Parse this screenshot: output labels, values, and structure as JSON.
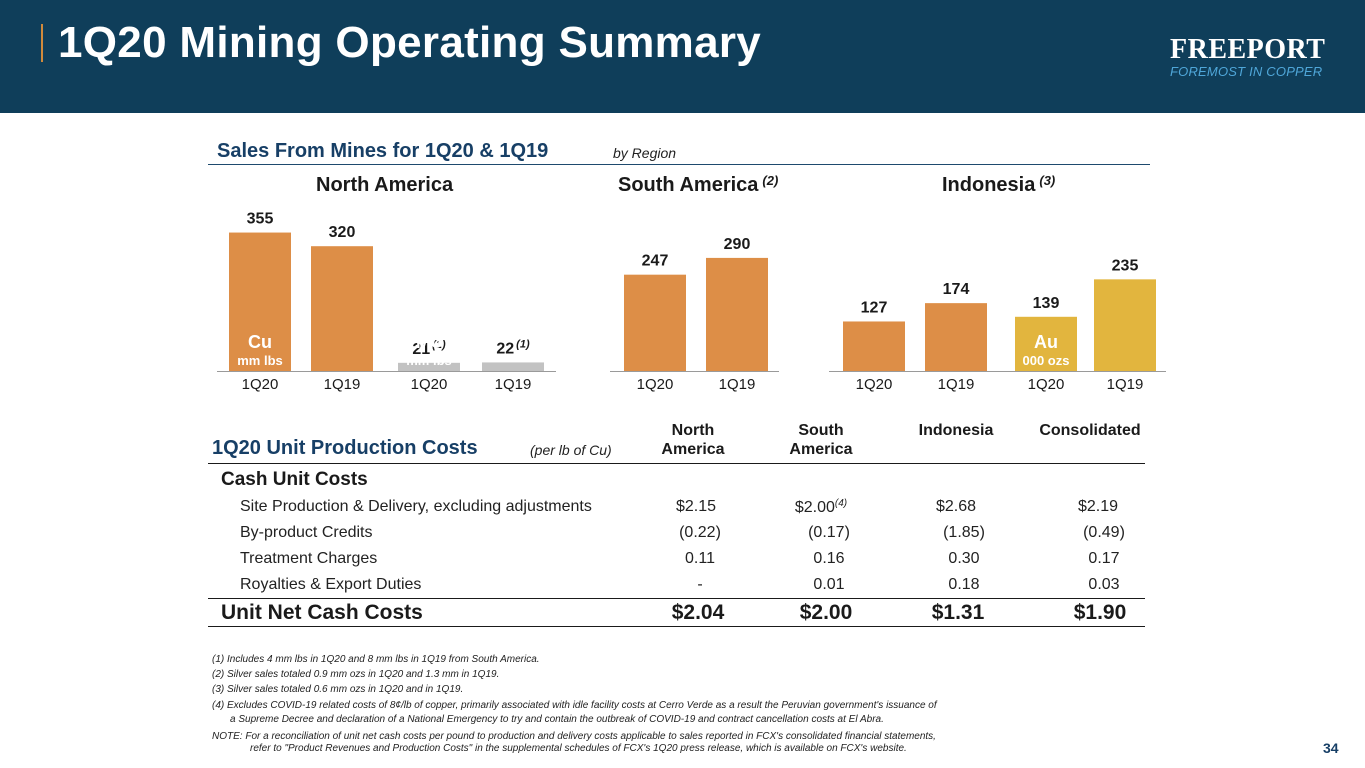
{
  "header": {
    "title": "1Q20 Mining Operating Summary",
    "logo_word": "FREEPORT",
    "logo_tagline": "FOREMOST IN COPPER"
  },
  "sales": {
    "title": "Sales From Mines for 1Q20 & 1Q19",
    "subtitle": "by Region",
    "regions": [
      {
        "name": "North America",
        "note": ""
      },
      {
        "name": "South America",
        "note": "(2)"
      },
      {
        "name": "Indonesia",
        "note": "(3)"
      }
    ]
  },
  "chart_data": {
    "type": "bar",
    "colors": {
      "copper": "#dd8e47",
      "molybdenum": "#c2c2c2",
      "gold": "#e2b53e"
    },
    "groups": [
      {
        "region": "North America",
        "metal": "Cu",
        "unit": "mm lbs",
        "color": "copper",
        "bars": [
          {
            "label": "1Q20",
            "value": 355,
            "display": "355",
            "note": ""
          },
          {
            "label": "1Q19",
            "value": 320,
            "display": "320",
            "note": ""
          }
        ]
      },
      {
        "region": "North America",
        "metal": "Mo",
        "unit": "mm lbs",
        "color": "molybdenum",
        "bars": [
          {
            "label": "1Q20",
            "value": 21,
            "display": "21",
            "note": "(1)"
          },
          {
            "label": "1Q19",
            "value": 22,
            "display": "22",
            "note": "(1)"
          }
        ]
      },
      {
        "region": "South America",
        "metal": "",
        "unit": "",
        "color": "copper",
        "bars": [
          {
            "label": "1Q20",
            "value": 247,
            "display": "247",
            "note": ""
          },
          {
            "label": "1Q19",
            "value": 290,
            "display": "290",
            "note": ""
          }
        ]
      },
      {
        "region": "Indonesia",
        "metal": "",
        "unit": "",
        "color": "copper",
        "bars": [
          {
            "label": "1Q20",
            "value": 127,
            "display": "127",
            "note": ""
          },
          {
            "label": "1Q19",
            "value": 174,
            "display": "174",
            "note": ""
          }
        ]
      },
      {
        "region": "Indonesia",
        "metal": "Au",
        "unit": "000 ozs",
        "color": "gold",
        "bars": [
          {
            "label": "1Q20",
            "value": 139,
            "display": "139",
            "note": ""
          },
          {
            "label": "1Q19",
            "value": 235,
            "display": "235",
            "note": ""
          }
        ]
      }
    ]
  },
  "costs": {
    "title": "1Q20 Unit Production Costs",
    "subtitle": "(per lb of Cu)",
    "columns": [
      {
        "line1": "North",
        "line2": "America"
      },
      {
        "line1": "South",
        "line2": "America"
      },
      {
        "line1": "",
        "line2": "Indonesia"
      },
      {
        "line1": "",
        "line2": "Consolidated"
      }
    ],
    "section_label": "Cash Unit Costs",
    "rows": [
      {
        "label": "Site Production & Delivery, excluding adjustments",
        "values": [
          "$2.15",
          "$2.00",
          "$2.68",
          "$2.19"
        ],
        "notes": [
          "",
          "(4)",
          "",
          ""
        ]
      },
      {
        "label": "By-product Credits",
        "values": [
          "(0.22)",
          "(0.17)",
          "(1.85)",
          "(0.49)"
        ],
        "notes": [
          "",
          "",
          "",
          ""
        ]
      },
      {
        "label": "Treatment Charges",
        "values": [
          "0.11",
          "0.16",
          "0.30",
          "0.17"
        ],
        "notes": [
          "",
          "",
          "",
          ""
        ]
      },
      {
        "label": "Royalties & Export Duties",
        "values": [
          "-",
          "0.01",
          "0.18",
          "0.03"
        ],
        "notes": [
          "",
          "",
          "",
          ""
        ]
      }
    ],
    "total": {
      "label": "Unit Net Cash Costs",
      "values": [
        "$2.04",
        "$2.00",
        "$1.31",
        "$1.90"
      ]
    }
  },
  "footnotes": [
    "(1) Includes 4 mm lbs in 1Q20 and 8 mm lbs in 1Q19 from South America.",
    "(2) Silver sales totaled 0.9 mm ozs in 1Q20 and 1.3 mm in 1Q19.",
    "(3) Silver sales totaled 0.6 mm ozs in 1Q20 and in 1Q19.",
    "(4) Excludes COVID-19 related costs of 8¢/lb of copper, primarily associated with idle facility costs at Cerro Verde as a result the Peruvian government's issuance of",
    "      a Supreme Decree and declaration of a National Emergency to try and contain the outbreak of COVID-19 and contract cancellation costs at El Abra.",
    "NOTE: For a reconciliation of unit net cash costs per pound to production and delivery costs applicable to sales reported in FCX's consolidated financial statements,",
    "            refer to \"Product Revenues and Production Costs\" in the supplemental schedules of FCX's 1Q20 press release, which is available on FCX's website."
  ],
  "page_number": "34"
}
